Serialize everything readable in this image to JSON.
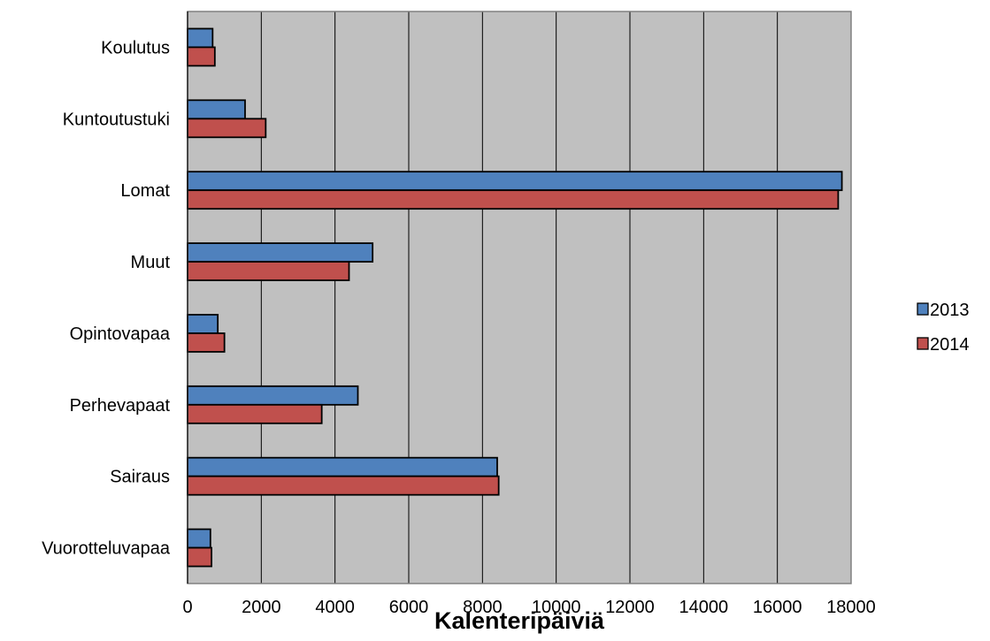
{
  "chart_data": {
    "type": "bar",
    "orientation": "horizontal",
    "categories": [
      "Koulutus",
      "Kuntoutustuki",
      "Lomat",
      "Muut",
      "Opintovapaa",
      "Perhevapaat",
      "Sairaus",
      "Vuorotteluvapaa"
    ],
    "series": [
      {
        "name": "2013",
        "color": "#4f81bd",
        "values": [
          680,
          1560,
          17750,
          5020,
          820,
          4620,
          8400,
          620
        ]
      },
      {
        "name": "2014",
        "color": "#c0504d",
        "values": [
          740,
          2120,
          17650,
          4380,
          1000,
          3640,
          8440,
          650
        ]
      }
    ],
    "xlabel": "Kalenteripäiviä",
    "ylabel": "",
    "xlim": [
      0,
      18000
    ],
    "x_ticks": [
      "0",
      "2000",
      "4000",
      "6000",
      "8000",
      "10000",
      "12000",
      "14000",
      "16000",
      "18000"
    ],
    "grid": "vertical",
    "legend_position": "right",
    "plot_background": "#c0c0c0"
  }
}
